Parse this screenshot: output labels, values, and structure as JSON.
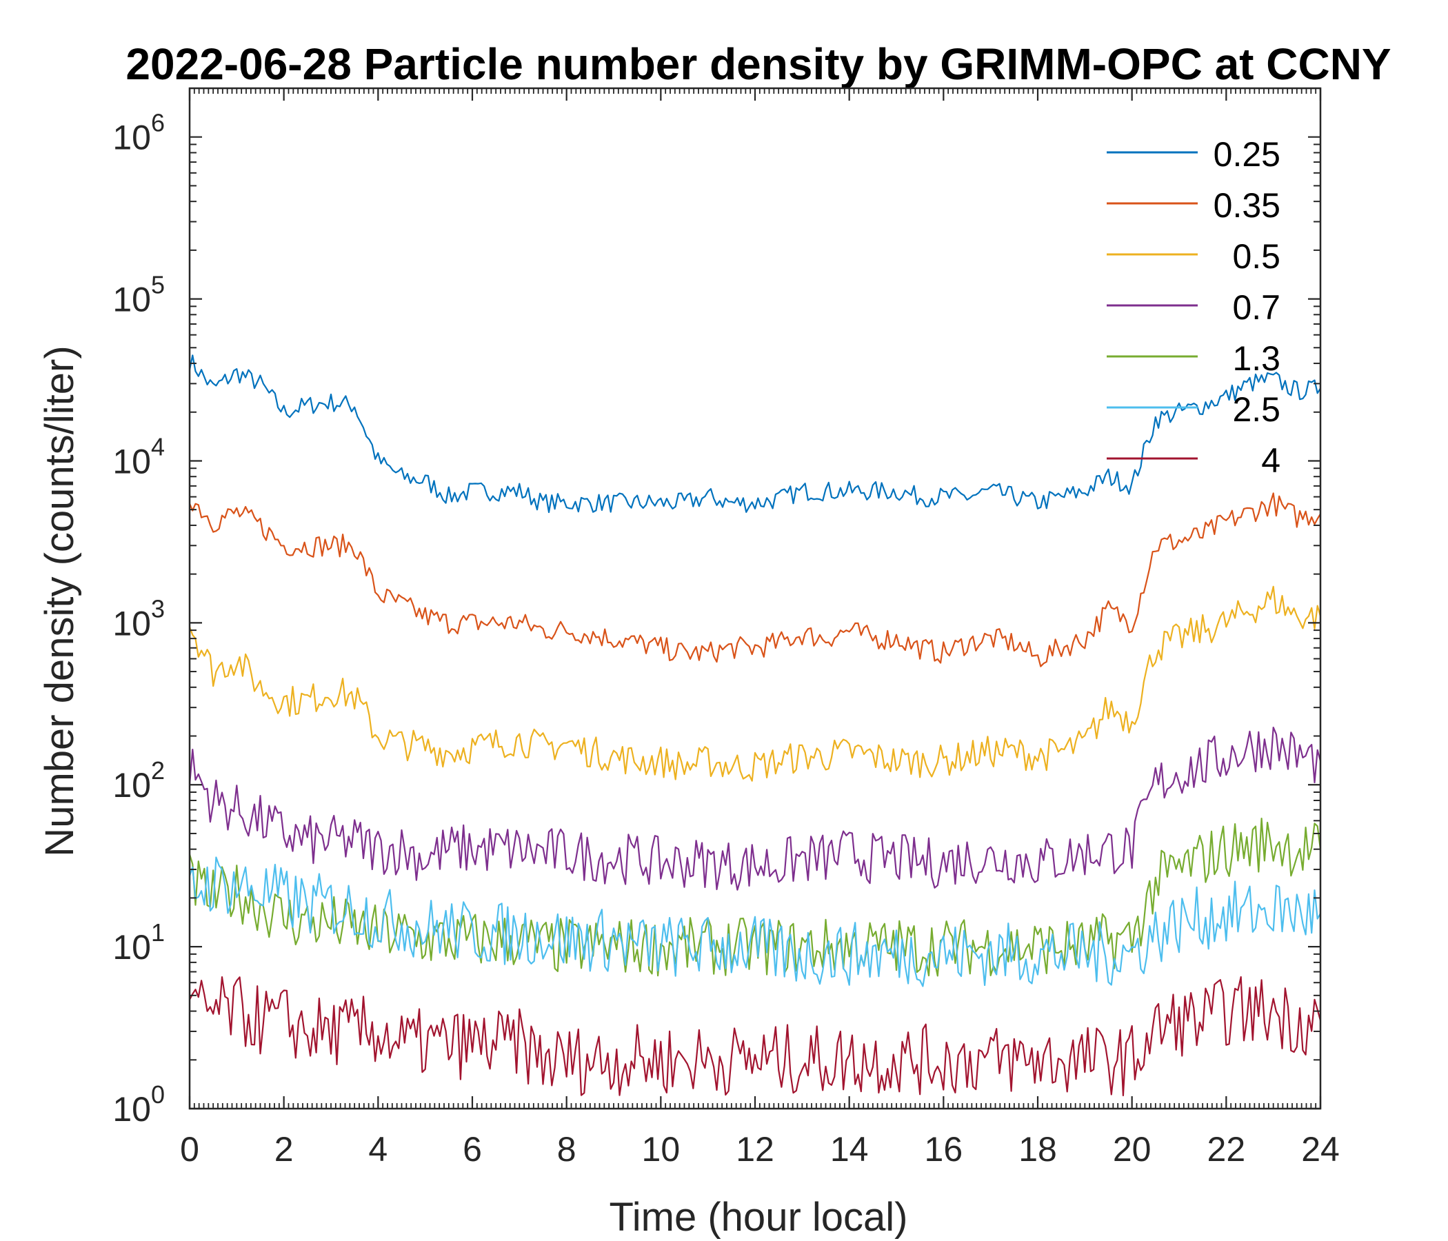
{
  "chart_data": {
    "type": "line",
    "title": "2022-06-28 Particle number density by GRIMM-OPC at CCNY",
    "xlabel": "Time (hour local)",
    "ylabel": "Number density (counts/liter)",
    "xlim": [
      0,
      24
    ],
    "ylim": [
      1,
      2000000
    ],
    "yscale": "log",
    "xticks": [
      0,
      2,
      4,
      6,
      8,
      10,
      12,
      14,
      16,
      18,
      20,
      22,
      24
    ],
    "xtick_labels": [
      "0",
      "2",
      "4",
      "6",
      "8",
      "10",
      "12",
      "14",
      "16",
      "18",
      "20",
      "22",
      "24"
    ],
    "yticks": [
      1,
      10,
      100,
      1000,
      10000,
      100000,
      1000000
    ],
    "ytick_labels": [
      {
        "base": "10",
        "exp": "0"
      },
      {
        "base": "10",
        "exp": "1"
      },
      {
        "base": "10",
        "exp": "2"
      },
      {
        "base": "10",
        "exp": "3"
      },
      {
        "base": "10",
        "exp": "4"
      },
      {
        "base": "10",
        "exp": "5"
      },
      {
        "base": "10",
        "exp": "6"
      }
    ],
    "legend_position": "top-right",
    "x": [
      0,
      0.5,
      1,
      1.5,
      2,
      2.5,
      3,
      3.5,
      4,
      4.5,
      5,
      5.5,
      6,
      6.5,
      7,
      7.5,
      8,
      8.5,
      9,
      9.5,
      10,
      10.5,
      11,
      11.5,
      12,
      12.5,
      13,
      13.5,
      14,
      14.5,
      15,
      15.5,
      16,
      16.5,
      17,
      17.5,
      18,
      18.5,
      19,
      19.5,
      20,
      20.5,
      21,
      21.5,
      22,
      22.5,
      23,
      23.5,
      24
    ],
    "series": [
      {
        "name": "0.25",
        "color": "#0072BD",
        "values": [
          42000,
          28000,
          35000,
          30000,
          20000,
          22000,
          23000,
          22000,
          10000,
          8000,
          7500,
          6000,
          6500,
          6500,
          6500,
          5500,
          5500,
          5500,
          5500,
          5500,
          5500,
          5500,
          6000,
          5500,
          5500,
          5800,
          6500,
          6500,
          6500,
          6500,
          6500,
          6000,
          6000,
          6000,
          6500,
          6000,
          5500,
          6000,
          6500,
          8000,
          7000,
          18000,
          20000,
          22000,
          25000,
          30000,
          32000,
          27000,
          28000
        ]
      },
      {
        "name": "0.35",
        "color": "#D95319",
        "values": [
          6000,
          4200,
          4800,
          4000,
          3000,
          3000,
          3000,
          3000,
          1500,
          1300,
          1100,
          1000,
          1000,
          1000,
          1000,
          900,
          900,
          850,
          800,
          750,
          700,
          650,
          650,
          700,
          700,
          750,
          850,
          800,
          900,
          800,
          800,
          700,
          650,
          750,
          800,
          750,
          600,
          700,
          800,
          1200,
          1000,
          3000,
          3200,
          3500,
          4200,
          4800,
          5500,
          4500,
          4700
        ]
      },
      {
        "name": "0.5",
        "color": "#EDB120",
        "values": [
          1000,
          500,
          600,
          400,
          330,
          330,
          380,
          350,
          200,
          180,
          170,
          160,
          170,
          180,
          190,
          170,
          180,
          160,
          150,
          140,
          140,
          130,
          140,
          130,
          130,
          140,
          150,
          150,
          160,
          150,
          140,
          140,
          140,
          150,
          160,
          160,
          150,
          160,
          180,
          300,
          250,
          700,
          800,
          900,
          1000,
          1200,
          1400,
          1100,
          1100
        ]
      },
      {
        "name": "0.7",
        "color": "#7E2F8E",
        "values": [
          130,
          80,
          70,
          60,
          50,
          45,
          45,
          45,
          40,
          40,
          35,
          40,
          40,
          40,
          40,
          38,
          38,
          36,
          35,
          35,
          33,
          33,
          33,
          32,
          32,
          32,
          35,
          35,
          38,
          35,
          35,
          33,
          33,
          35,
          35,
          35,
          33,
          35,
          38,
          40,
          40,
          100,
          120,
          130,
          150,
          170,
          180,
          150,
          140
        ]
      },
      {
        "name": "1.3",
        "color": "#77AC30",
        "values": [
          25,
          20,
          22,
          18,
          15,
          14,
          14,
          13,
          12,
          12,
          11,
          11,
          11,
          11,
          11,
          10,
          10,
          10,
          10,
          10,
          10,
          10,
          10,
          10,
          10,
          10,
          10,
          10,
          10,
          10,
          10,
          10,
          10,
          10,
          10,
          10,
          10,
          10,
          10,
          11,
          11,
          25,
          30,
          35,
          40,
          42,
          45,
          40,
          40
        ]
      },
      {
        "name": "2.5",
        "color": "#4DBEEE",
        "values": [
          22,
          25,
          24,
          22,
          20,
          18,
          18,
          17,
          15,
          14,
          13,
          13,
          12,
          12,
          12,
          12,
          11,
          11,
          11,
          10,
          10,
          10,
          10,
          10,
          10,
          9,
          9,
          9,
          9,
          9,
          9,
          9,
          9,
          9,
          9,
          9,
          9,
          9,
          9,
          9,
          9,
          12,
          14,
          15,
          16,
          16,
          17,
          16,
          16
        ]
      },
      {
        "name": "4",
        "color": "#A2142F",
        "values": [
          4,
          4,
          4,
          3.5,
          3.5,
          3,
          3,
          3,
          3,
          2.5,
          2.5,
          2.5,
          2.5,
          2.5,
          2.5,
          2,
          2,
          2,
          2,
          2,
          2,
          2,
          2,
          2,
          2,
          2,
          2,
          2,
          2,
          2,
          2,
          2,
          2,
          2,
          2,
          2,
          2,
          2,
          2,
          2,
          2,
          3,
          3.5,
          3.5,
          4,
          4,
          4,
          3.5,
          3.5
        ]
      }
    ]
  }
}
